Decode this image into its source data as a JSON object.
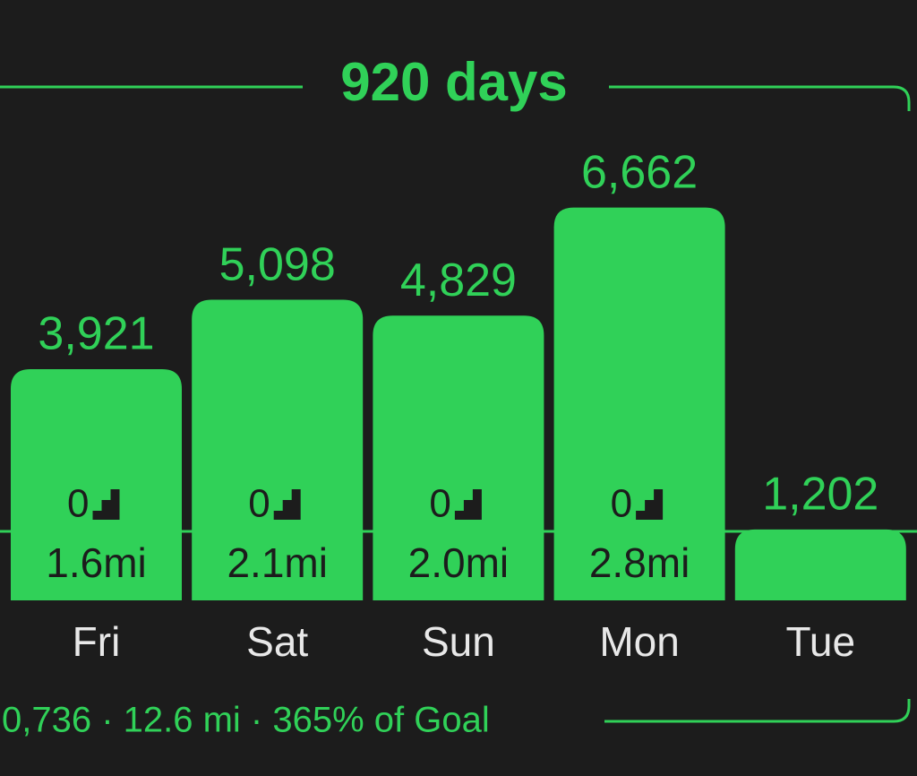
{
  "chart_data": {
    "type": "bar",
    "title": "920 days",
    "categories": [
      "Fri",
      "Sat",
      "Sun",
      "Mon",
      "Tue"
    ],
    "values": [
      3921,
      5098,
      4829,
      6662,
      1202
    ],
    "value_labels": [
      "3,921",
      "5,098",
      "4,829",
      "6,662",
      "1,202"
    ],
    "stairs": [
      0,
      0,
      0,
      0,
      null
    ],
    "distances": [
      1.6,
      2.1,
      2.0,
      2.8,
      null
    ],
    "distance_labels": [
      "1.6mi",
      "2.1mi",
      "2.0mi",
      "2.8mi",
      null
    ],
    "goal": 1170,
    "color": "#30d158",
    "ylim": [
      0,
      10000
    ],
    "footer": "0,736 · 12.6 mi · 365% of Goal"
  }
}
